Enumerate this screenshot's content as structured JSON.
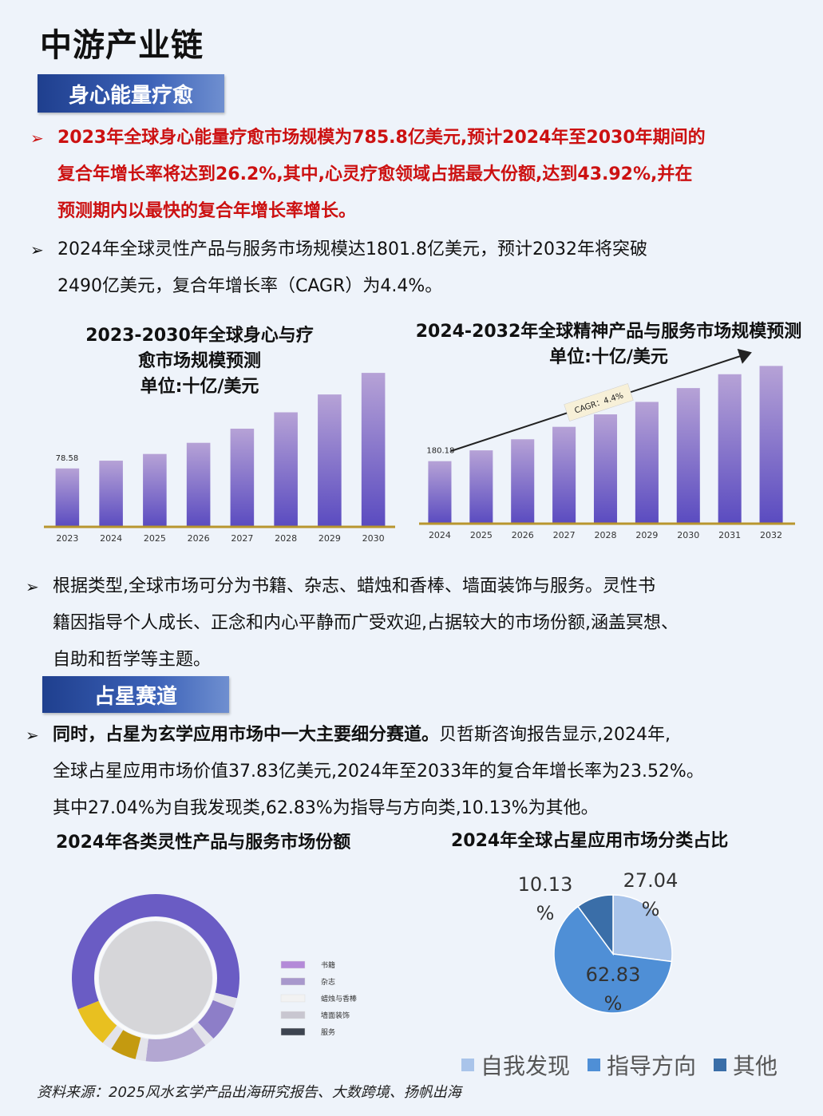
{
  "page": {
    "title": "中游产业链",
    "sections": [
      {
        "tag": "身心能量疗愈"
      },
      {
        "tag": "占星赛道"
      }
    ],
    "bullets": {
      "b1": [
        "2023年全球身心能量疗愈市场规模为785.8亿美元,预计2024年至2030年期间的",
        "复合年增长率将达到26.2%,其中,心灵疗愈领域占据最大份额,达到43.92%,并在",
        "预测期内以最快的复合年增长率增长。"
      ],
      "b2": [
        "2024年全球灵性产品与服务市场规模达1801.8亿美元，预计2032年将突破",
        "2490亿美元，复合年增长率（CAGR）为4.4%。"
      ],
      "b3": [
        "根据类型,全球市场可分为书籍、杂志、蜡烛和香棒、墙面装饰与服务。灵性书",
        "籍因指导个人成长、正念和内心平静而广受欢迎,占据较大的市场份额,涵盖冥想、",
        "自助和哲学等主题。"
      ],
      "b4_bold": "同时，占星为玄学应用市场中一大主要细分赛道。",
      "b4": [
        "贝哲斯咨询报告显示,2024年,",
        "全球占星应用市场价值37.83亿美元,2024年至2033年的复合年增长率为23.52%。",
        "其中27.04%为自我发现类,62.83%为指导与方向类,10.13%为其他。"
      ]
    },
    "source": "资料来源：2025风水玄学产品出海研究报告、大数跨境、扬帆出海"
  },
  "chart_data": [
    {
      "type": "bar",
      "title_lines": [
        "2023-2030年全球身心与疗",
        "愈市场规模预测",
        "单位:十亿/美元"
      ],
      "categories": [
        "2023",
        "2024",
        "2025",
        "2026",
        "2027",
        "2028",
        "2029",
        "2030"
      ],
      "values": [
        78.58,
        89,
        98,
        113,
        132,
        154,
        178,
        207
      ],
      "first_label": "78.58",
      "ylim": [
        0,
        220
      ],
      "colors": {
        "top": "#b6a2d6",
        "bottom": "#5a4bc0",
        "axis": "#b8962e"
      }
    },
    {
      "type": "bar",
      "title_lines": [
        "2024-2032年全球精神产品与服务市场规模预测",
        "单位:十亿/美元"
      ],
      "categories": [
        "2024",
        "2025",
        "2026",
        "2027",
        "2028",
        "2029",
        "2030",
        "2031",
        "2032"
      ],
      "values": [
        180.18,
        188,
        196,
        205,
        214,
        223,
        233,
        243,
        249
      ],
      "first_label": "180.18",
      "annotation": "CAGR：4.4%",
      "ylim": [
        135,
        255
      ],
      "colors": {
        "top": "#b6a2d6",
        "bottom": "#5a4bc0",
        "axis": "#b8962e"
      }
    },
    {
      "type": "pie",
      "subtype": "donut",
      "title": "2024年各类灵性产品与服务市场份额",
      "categories": [
        "书籍",
        "杂志",
        "蜡烛与香棒",
        "墙面装饰",
        "服务"
      ],
      "outer_ring": [
        {
          "value": 60,
          "color": "#6a5cc4"
        },
        {
          "value": 2,
          "color": "#e3e3ea"
        },
        {
          "value": 7,
          "color": "#8d7ec8"
        },
        {
          "value": 2,
          "color": "#e3e3ea"
        },
        {
          "value": 12,
          "color": "#b3a7d2"
        },
        {
          "value": 2,
          "color": "#e3e3ea"
        },
        {
          "value": 5,
          "color": "#c49a10"
        },
        {
          "value": 2,
          "color": "#e3e3ea"
        },
        {
          "value": 8,
          "color": "#e8c020"
        }
      ],
      "legend_colors": [
        "#b48ad8",
        "#a898cc",
        "#f2f2f2",
        "#c8c6d0",
        "#3d4450"
      ]
    },
    {
      "type": "pie",
      "title": "2024年全球占星应用市场分类占比",
      "categories": [
        "自我发现",
        "指导方向",
        "其他"
      ],
      "values": [
        27.04,
        62.83,
        10.13
      ],
      "labels": [
        [
          "27.04",
          "%"
        ],
        [
          "62.83",
          "%"
        ],
        [
          "10.13",
          "%"
        ]
      ],
      "colors": [
        "#a9c4ea",
        "#4f8fd6",
        "#3a6ea8"
      ]
    }
  ]
}
